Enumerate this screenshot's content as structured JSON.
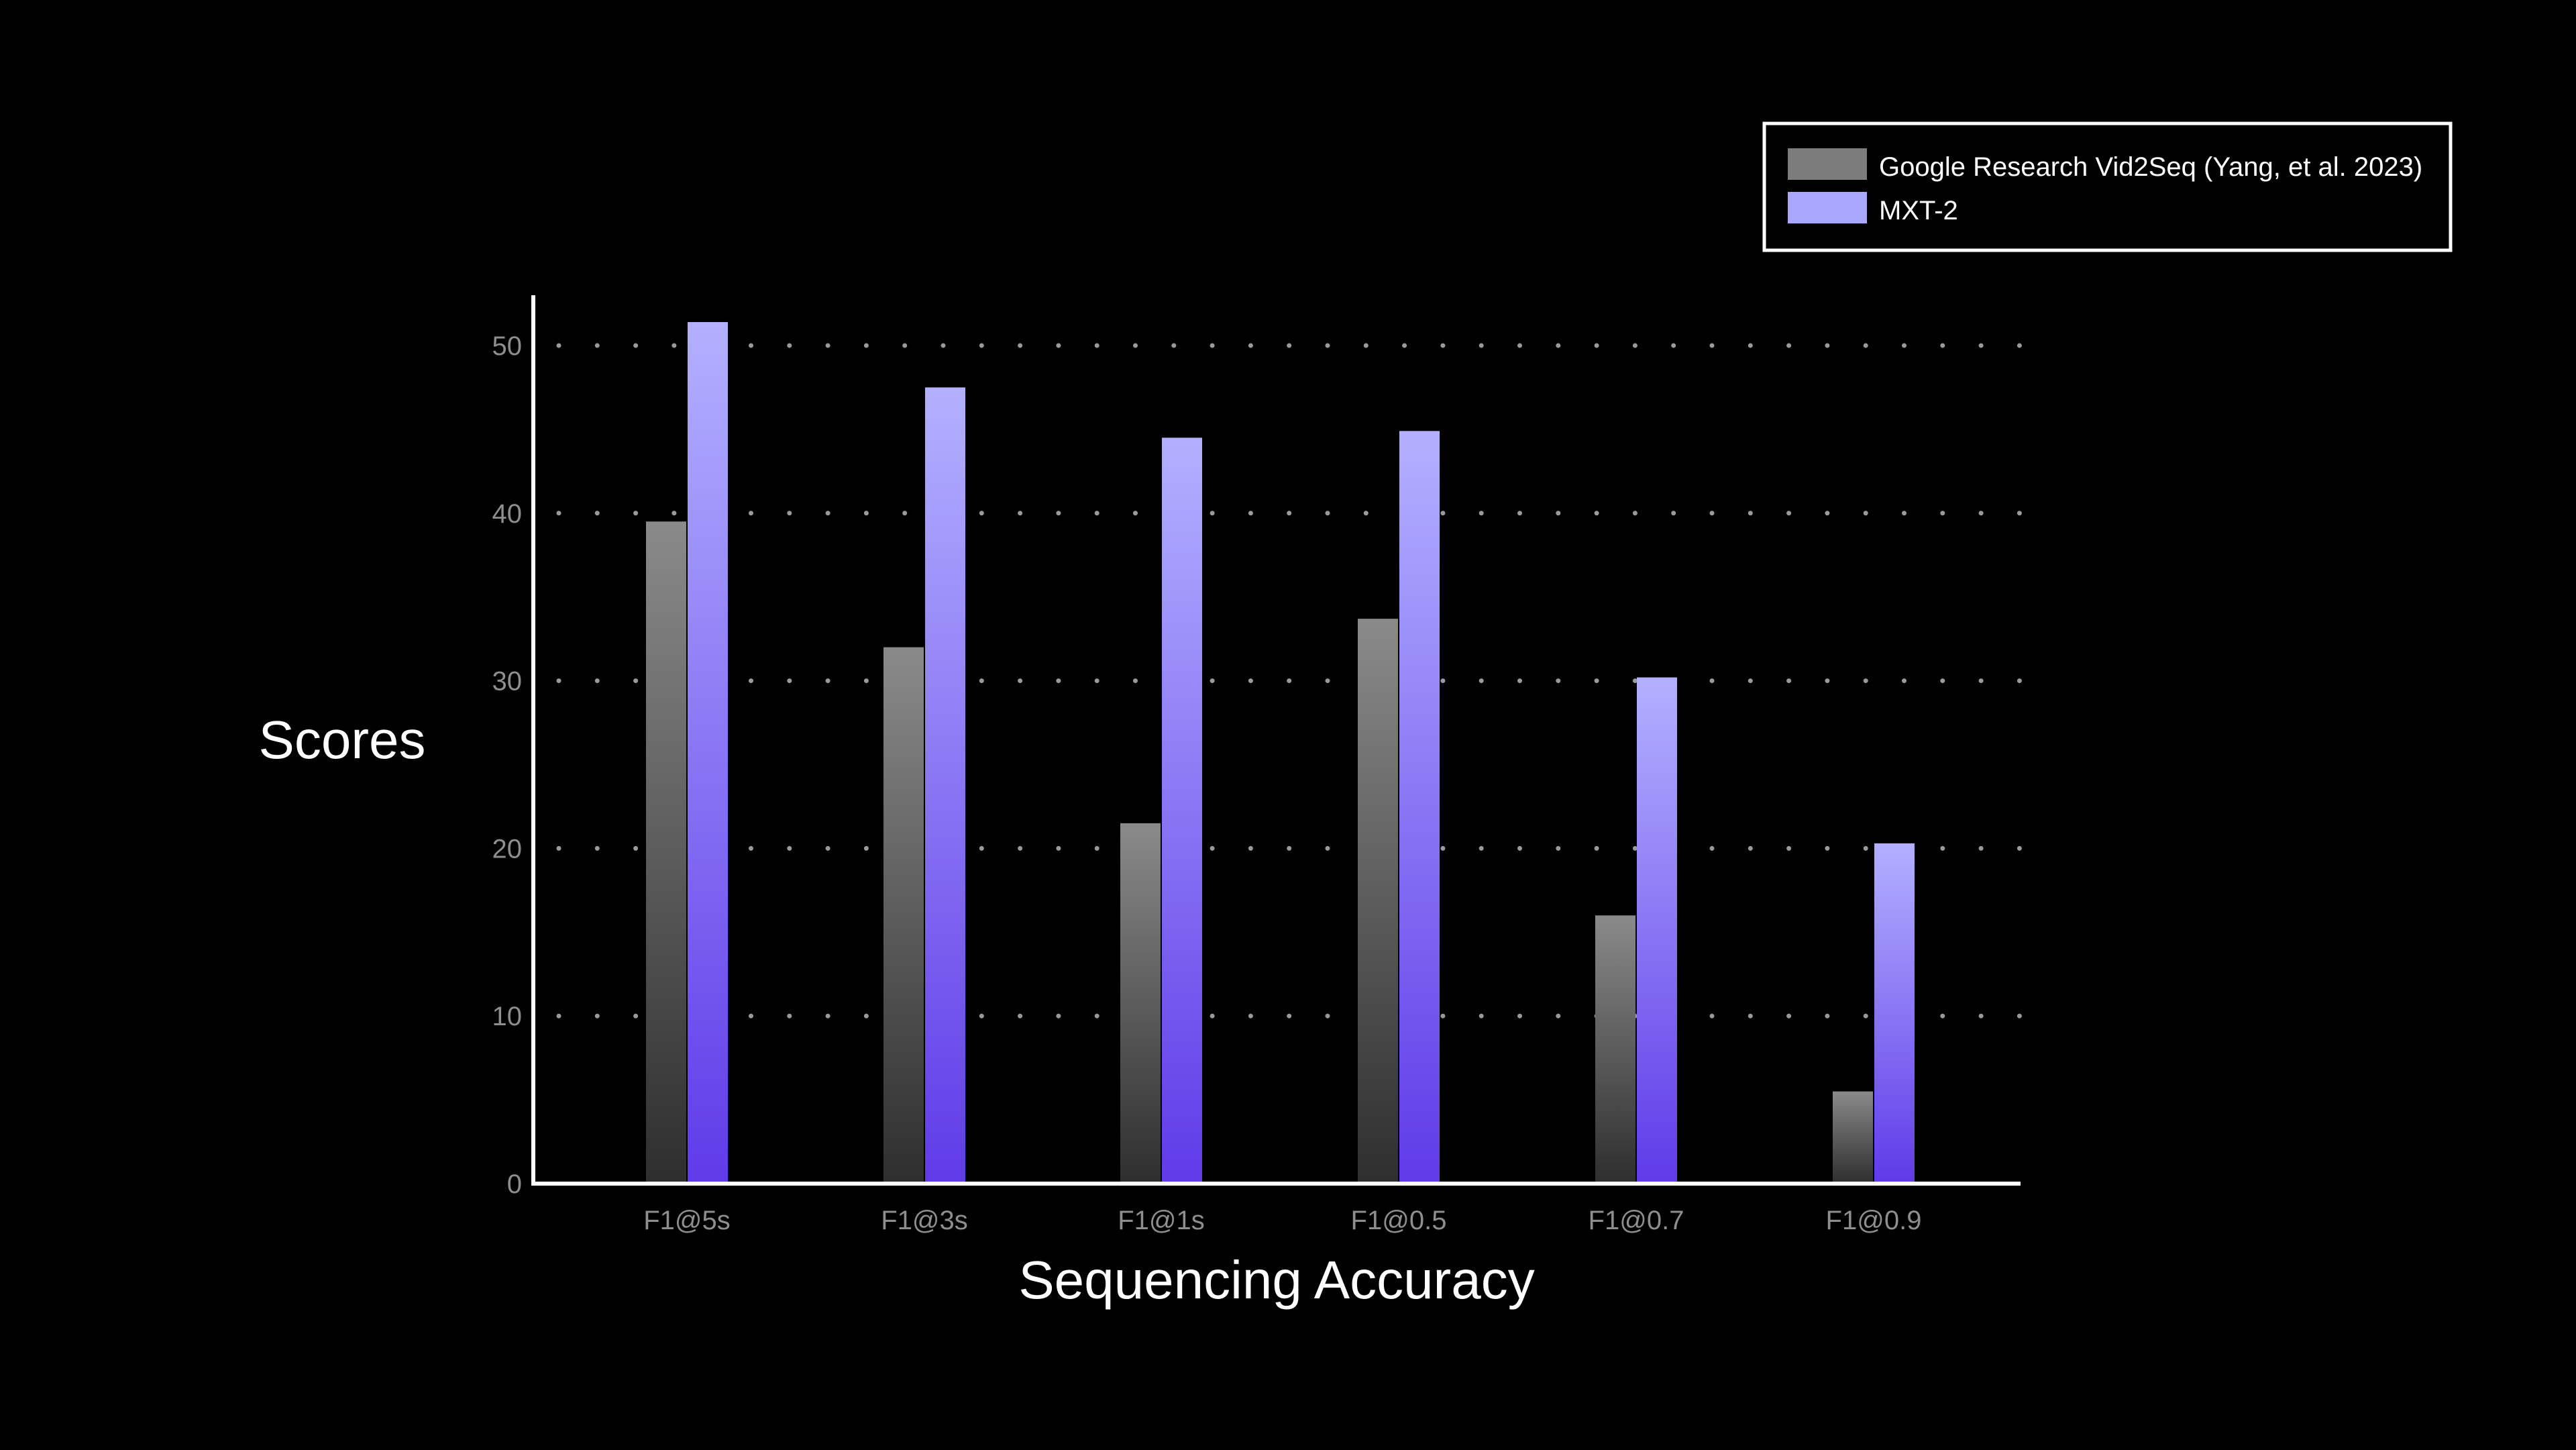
{
  "chart_data": {
    "type": "bar",
    "xlabel": "Sequencing Accuracy",
    "ylabel": "Scores",
    "categories": [
      "F1@5s",
      "F1@3s",
      "F1@1s",
      "F1@0.5",
      "F1@0.7",
      "F1@0.9"
    ],
    "series": [
      {
        "name": "Google Research Vid2Seq (Yang, et al. 2023)",
        "values": [
          39.5,
          32.0,
          21.5,
          33.7,
          16.0,
          5.5
        ]
      },
      {
        "name": "MXT-2",
        "values": [
          51.4,
          47.5,
          44.5,
          44.9,
          30.2,
          20.3
        ]
      }
    ],
    "ylim": [
      0,
      53
    ],
    "yticks": [
      0,
      10,
      20,
      30,
      40,
      50
    ],
    "grid": true,
    "grid_style": "dotted horizontal",
    "legend_position": "top-right",
    "colors": {
      "background": "#000000",
      "series_0_top": "#8a8a8a",
      "series_0_bottom": "#2e2e2e",
      "series_1_top": "#b3b0ff",
      "series_1_bottom": "#5f3be8",
      "axis": "#ffffff",
      "grid": "#9a9a9a",
      "tick_label": "#8e8e8e",
      "legend_swatch_0": "#7c7c7c",
      "legend_swatch_1": "#aaa7ff"
    }
  }
}
